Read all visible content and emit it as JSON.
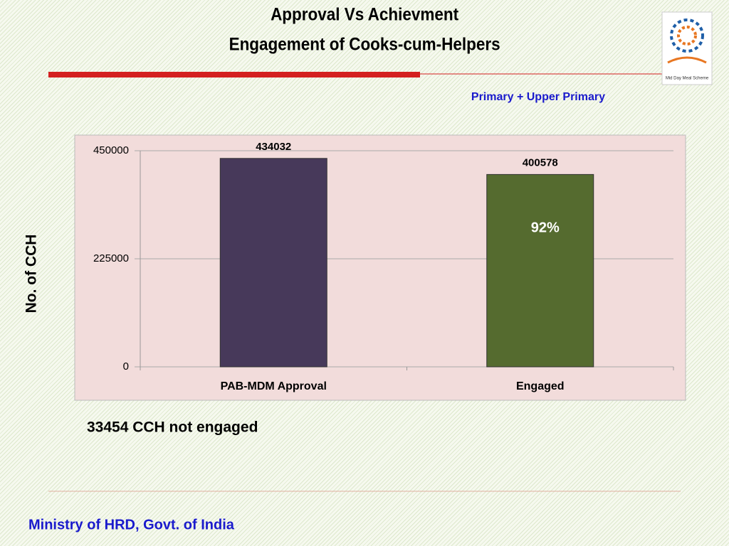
{
  "title": [
    "Approval Vs Achievment",
    "Engagement  of Cooks-cum-Helpers"
  ],
  "logo_caption": "Mid Day Meal Scheme",
  "note": "33454 CCH not engaged",
  "footer": "Ministry of HRD, Govt. of India",
  "chart_data": {
    "type": "bar",
    "subtitle": "Primary + Upper Primary",
    "y_label": "No. of CCH",
    "categories": [
      "PAB-MDM Approval",
      "Engaged"
    ],
    "values": [
      434032,
      400578
    ],
    "colors": [
      "#47395a",
      "#556b2f"
    ],
    "annotations": [
      "92%"
    ],
    "ylim": [
      0,
      450000
    ],
    "yticks": [
      0,
      225000,
      450000
    ],
    "grid": true
  }
}
